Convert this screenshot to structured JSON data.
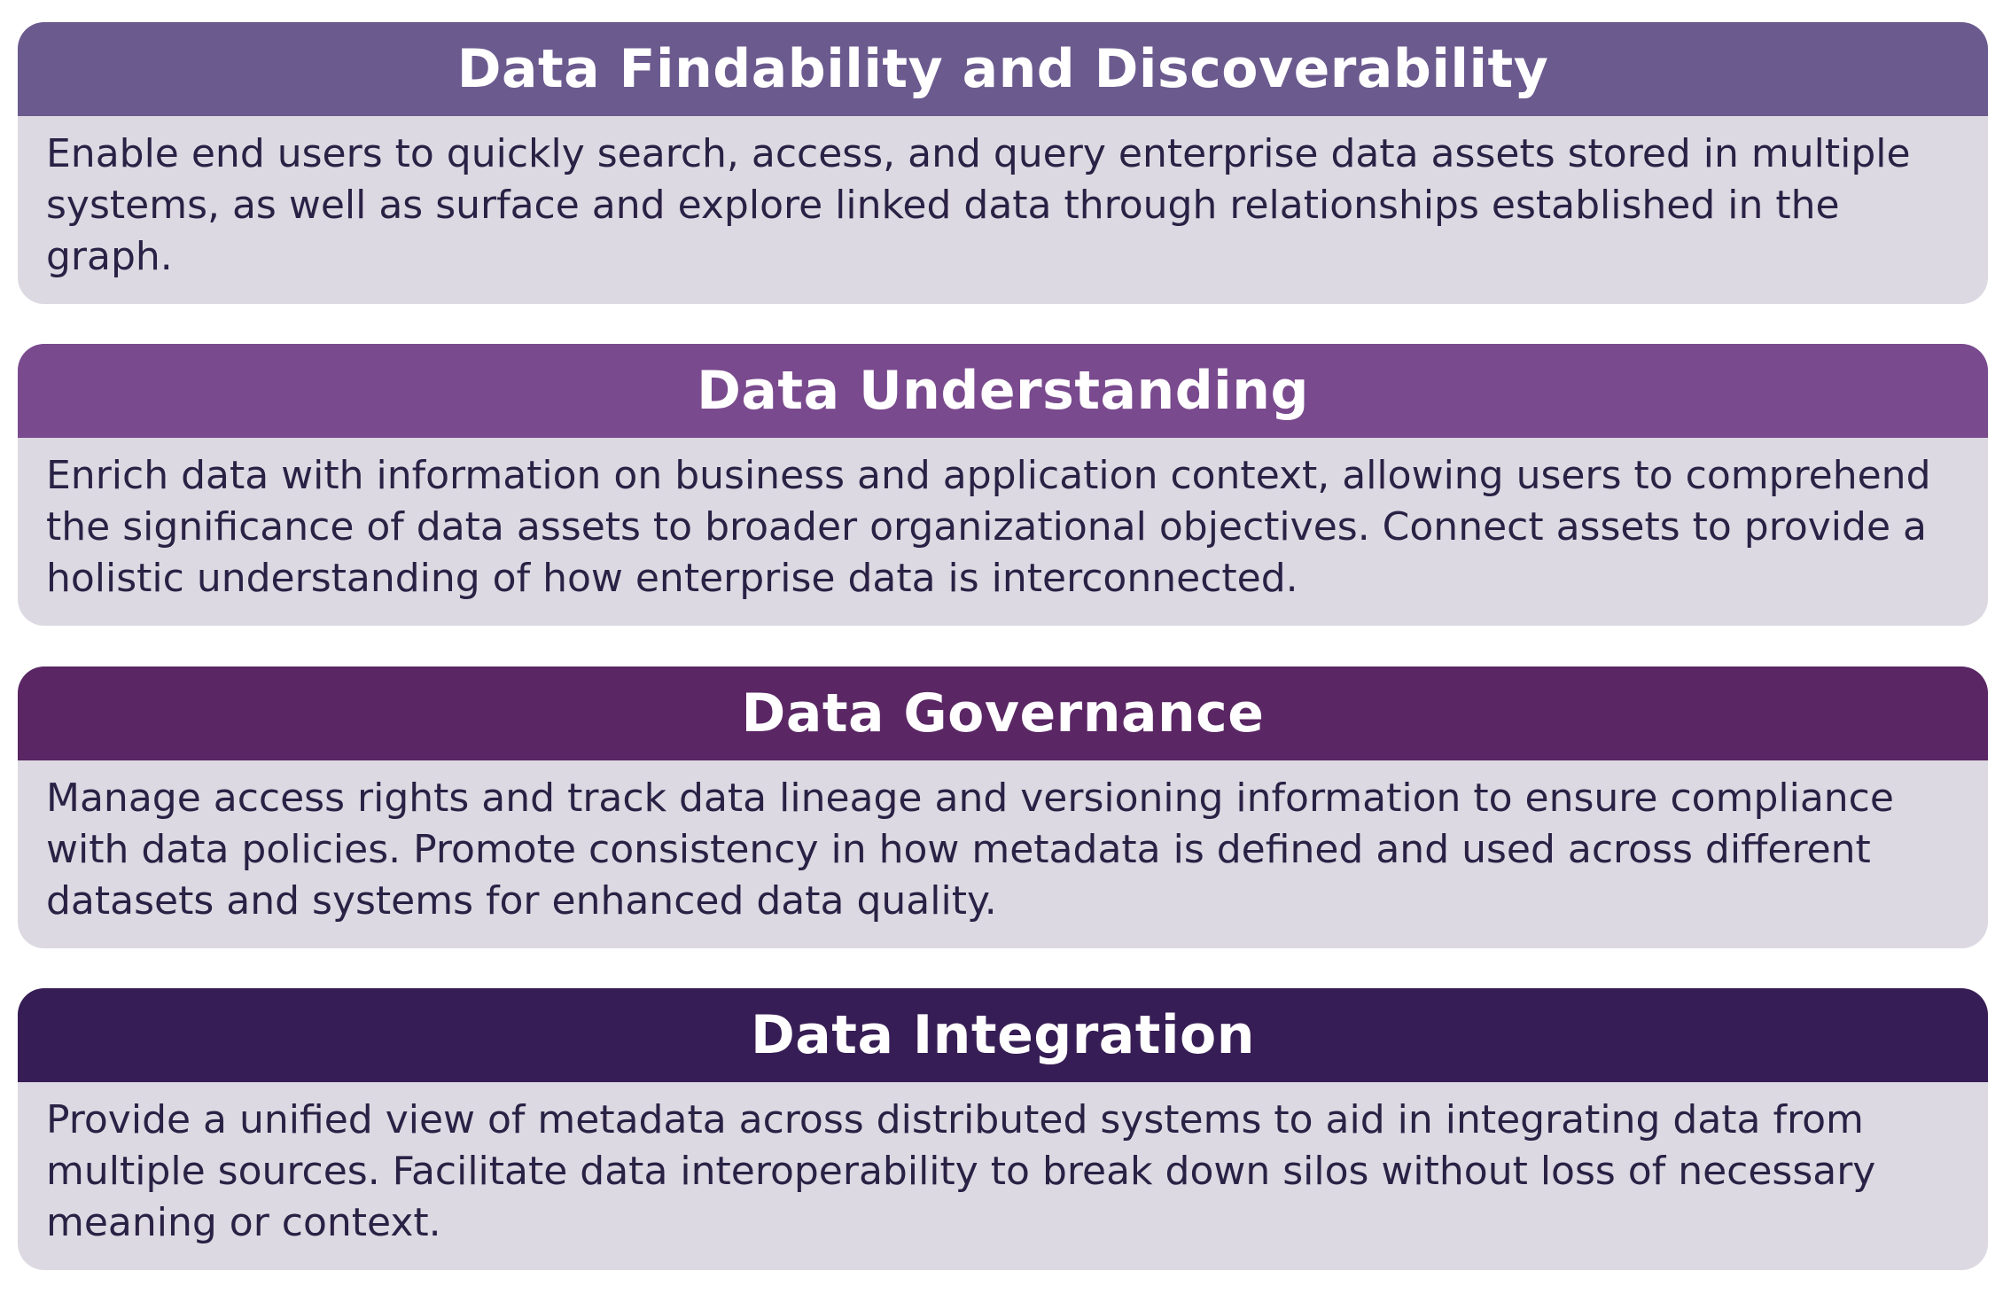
{
  "cards": [
    {
      "title": "Data Findability and Discoverability",
      "text": "Enable end users to quickly search, access, and query enterprise data assets stored in multiple systems, as well as surface and explore linked data through relationships established in the graph.",
      "color": "#6b5a8e"
    },
    {
      "title": "Data Understanding",
      "text": "Enrich data with information on business and application context, allowing users to comprehend the significance of data assets to broader organizational objectives. Connect assets to provide a holistic understanding of how enterprise data is interconnected.",
      "color": "#7a4a8e"
    },
    {
      "title": "Data Governance",
      "text": "Manage access rights and track data lineage and versioning information to ensure compliance with data policies. Promote consistency in how metadata is defined and used across different datasets and systems for enhanced data quality.",
      "color": "#5a2664"
    },
    {
      "title": "Data Integration",
      "text": "Provide a unified view of metadata across distributed systems to aid in integrating data from multiple sources. Facilitate data interoperability to break down silos without loss of necessary meaning or context.",
      "color": "#371d55"
    }
  ]
}
